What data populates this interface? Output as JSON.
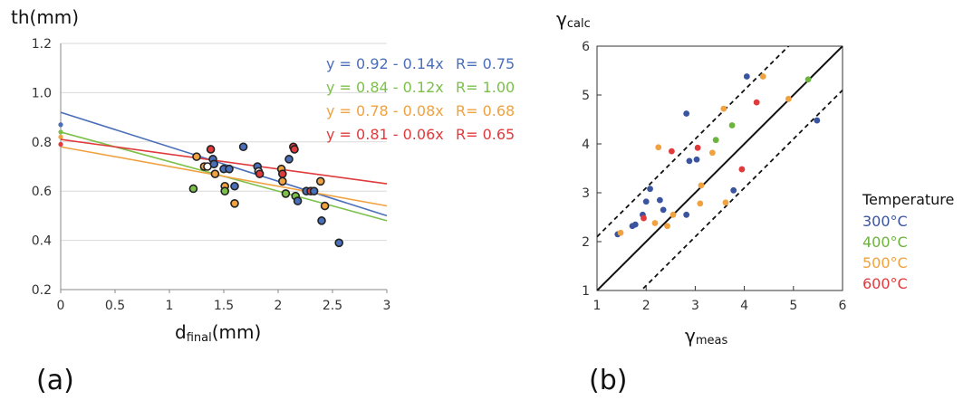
{
  "panels": {
    "a": "(a)",
    "b": "(b)"
  },
  "colors": {
    "300": "#3a54a0",
    "400": "#6cb33f",
    "500": "#f0a241",
    "600": "#e03a3c",
    "outline": "#222222"
  },
  "chart_data": [
    {
      "id": "a",
      "type": "scatter",
      "ylabel_top": "th(mm)",
      "xlabel_main": "d",
      "xlabel_sub": "final",
      "xlabel_unit": "(mm)",
      "xlim": [
        0,
        3
      ],
      "ylim": [
        0.2,
        1.2
      ],
      "xticks": [
        "0",
        "0.5",
        "1",
        "1.5",
        "2",
        "2.5",
        "3"
      ],
      "yticks": [
        "0.2",
        "0.4",
        "0.6",
        "0.8",
        "1.0",
        "1.2"
      ],
      "grid": "horizontal",
      "fits": [
        {
          "label": "y = 0.92 - 0.14x",
          "r": "R= 0.75",
          "color": "#4a6fb8",
          "intercept": 0.92,
          "slope": -0.14,
          "intercept_marker": 0.87
        },
        {
          "label": "y = 0.84 - 0.12x",
          "r": "R= 1.00",
          "color": "#7cc04a",
          "intercept": 0.84,
          "slope": -0.12,
          "intercept_marker": 0.84
        },
        {
          "label": "y = 0.78 - 0.08x",
          "r": "R= 0.68",
          "color": "#f0a241",
          "intercept": 0.78,
          "slope": -0.08,
          "intercept_marker": 0.82
        },
        {
          "label": "y = 0.81 - 0.06x",
          "r": "R= 0.65",
          "color": "#e03a3c",
          "intercept": 0.81,
          "slope": -0.06,
          "intercept_marker": 0.79
        }
      ],
      "points": [
        {
          "x": 1.22,
          "y": 0.61,
          "c": "#7cc04a"
        },
        {
          "x": 1.25,
          "y": 0.74,
          "c": "#f0a241"
        },
        {
          "x": 1.32,
          "y": 0.7,
          "c": "#f0a241"
        },
        {
          "x": 1.35,
          "y": 0.7,
          "c": "#ffffff"
        },
        {
          "x": 1.38,
          "y": 0.77,
          "c": "#e03a3c"
        },
        {
          "x": 1.4,
          "y": 0.73,
          "c": "#4a6fb8"
        },
        {
          "x": 1.41,
          "y": 0.71,
          "c": "#4a6fb8"
        },
        {
          "x": 1.42,
          "y": 0.67,
          "c": "#f0a241"
        },
        {
          "x": 1.5,
          "y": 0.69,
          "c": "#4a6fb8"
        },
        {
          "x": 1.51,
          "y": 0.62,
          "c": "#f0a241"
        },
        {
          "x": 1.51,
          "y": 0.6,
          "c": "#7cc04a"
        },
        {
          "x": 1.55,
          "y": 0.69,
          "c": "#4a6fb8"
        },
        {
          "x": 1.6,
          "y": 0.62,
          "c": "#4a6fb8"
        },
        {
          "x": 1.6,
          "y": 0.55,
          "c": "#f0a241"
        },
        {
          "x": 1.68,
          "y": 0.78,
          "c": "#4a6fb8"
        },
        {
          "x": 1.81,
          "y": 0.7,
          "c": "#4a6fb8"
        },
        {
          "x": 1.82,
          "y": 0.68,
          "c": "#ffffff"
        },
        {
          "x": 1.83,
          "y": 0.67,
          "c": "#e03a3c"
        },
        {
          "x": 2.03,
          "y": 0.69,
          "c": "#f0a241"
        },
        {
          "x": 2.04,
          "y": 0.67,
          "c": "#e03a3c"
        },
        {
          "x": 2.04,
          "y": 0.64,
          "c": "#f0a241"
        },
        {
          "x": 2.07,
          "y": 0.59,
          "c": "#7cc04a"
        },
        {
          "x": 2.1,
          "y": 0.73,
          "c": "#4a6fb8"
        },
        {
          "x": 2.14,
          "y": 0.78,
          "c": "#e03a3c"
        },
        {
          "x": 2.15,
          "y": 0.77,
          "c": "#e03a3c"
        },
        {
          "x": 2.16,
          "y": 0.58,
          "c": "#7cc04a"
        },
        {
          "x": 2.18,
          "y": 0.56,
          "c": "#4a6fb8"
        },
        {
          "x": 2.26,
          "y": 0.6,
          "c": "#4a6fb8"
        },
        {
          "x": 2.3,
          "y": 0.6,
          "c": "#e03a3c"
        },
        {
          "x": 2.33,
          "y": 0.6,
          "c": "#4a6fb8"
        },
        {
          "x": 2.39,
          "y": 0.64,
          "c": "#f0a241"
        },
        {
          "x": 2.4,
          "y": 0.48,
          "c": "#4a6fb8"
        },
        {
          "x": 2.43,
          "y": 0.54,
          "c": "#f0a241"
        },
        {
          "x": 2.56,
          "y": 0.39,
          "c": "#4a6fb8"
        }
      ]
    },
    {
      "id": "b",
      "type": "scatter",
      "ylabel_main": "γ",
      "ylabel_sub": "calc",
      "xlabel_main": "γ",
      "xlabel_sub": "meas",
      "xlim": [
        1,
        6
      ],
      "ylim": [
        1,
        6
      ],
      "xticks": [
        "1",
        "2",
        "3",
        "4",
        "5",
        "6"
      ],
      "yticks": [
        "1",
        "2",
        "3",
        "4",
        "5",
        "6"
      ],
      "lines": [
        {
          "kind": "solid",
          "offset": 0
        },
        {
          "kind": "dashed",
          "offset": 1.1
        },
        {
          "kind": "dashed",
          "offset": -0.9
        }
      ],
      "legend_title": "Temperature",
      "legend": [
        {
          "label": "300°C",
          "color": "#3a54a0"
        },
        {
          "label": "400°C",
          "color": "#6cb33f"
        },
        {
          "label": "500°C",
          "color": "#f0a241"
        },
        {
          "label": "600°C",
          "color": "#e03a3c"
        }
      ],
      "series": [
        {
          "name": "300°C",
          "color": "#3a54a0",
          "points": [
            [
              1.42,
              2.15
            ],
            [
              1.72,
              2.32
            ],
            [
              1.78,
              2.35
            ],
            [
              1.93,
              2.55
            ],
            [
              2.0,
              2.82
            ],
            [
              2.08,
              3.08
            ],
            [
              2.28,
              2.85
            ],
            [
              2.35,
              2.65
            ],
            [
              2.82,
              2.55
            ],
            [
              2.82,
              4.62
            ],
            [
              2.88,
              3.65
            ],
            [
              3.03,
              3.68
            ],
            [
              3.78,
              3.05
            ],
            [
              4.05,
              5.38
            ],
            [
              5.48,
              4.48
            ]
          ]
        },
        {
          "name": "400°C",
          "color": "#6cb33f",
          "points": [
            [
              3.42,
              4.08
            ],
            [
              3.75,
              4.38
            ],
            [
              5.3,
              5.32
            ]
          ]
        },
        {
          "name": "500°C",
          "color": "#f0a241",
          "points": [
            [
              1.48,
              2.18
            ],
            [
              2.18,
              2.38
            ],
            [
              2.25,
              3.93
            ],
            [
              2.43,
              2.32
            ],
            [
              2.55,
              2.55
            ],
            [
              3.1,
              2.78
            ],
            [
              3.12,
              3.15
            ],
            [
              3.35,
              3.82
            ],
            [
              3.58,
              4.72
            ],
            [
              3.62,
              2.8
            ],
            [
              4.38,
              5.38
            ],
            [
              4.9,
              4.92
            ]
          ]
        },
        {
          "name": "600°C",
          "color": "#e03a3c",
          "points": [
            [
              1.95,
              2.48
            ],
            [
              2.52,
              3.85
            ],
            [
              3.05,
              3.92
            ],
            [
              3.95,
              3.48
            ],
            [
              4.25,
              4.85
            ]
          ]
        }
      ]
    }
  ]
}
